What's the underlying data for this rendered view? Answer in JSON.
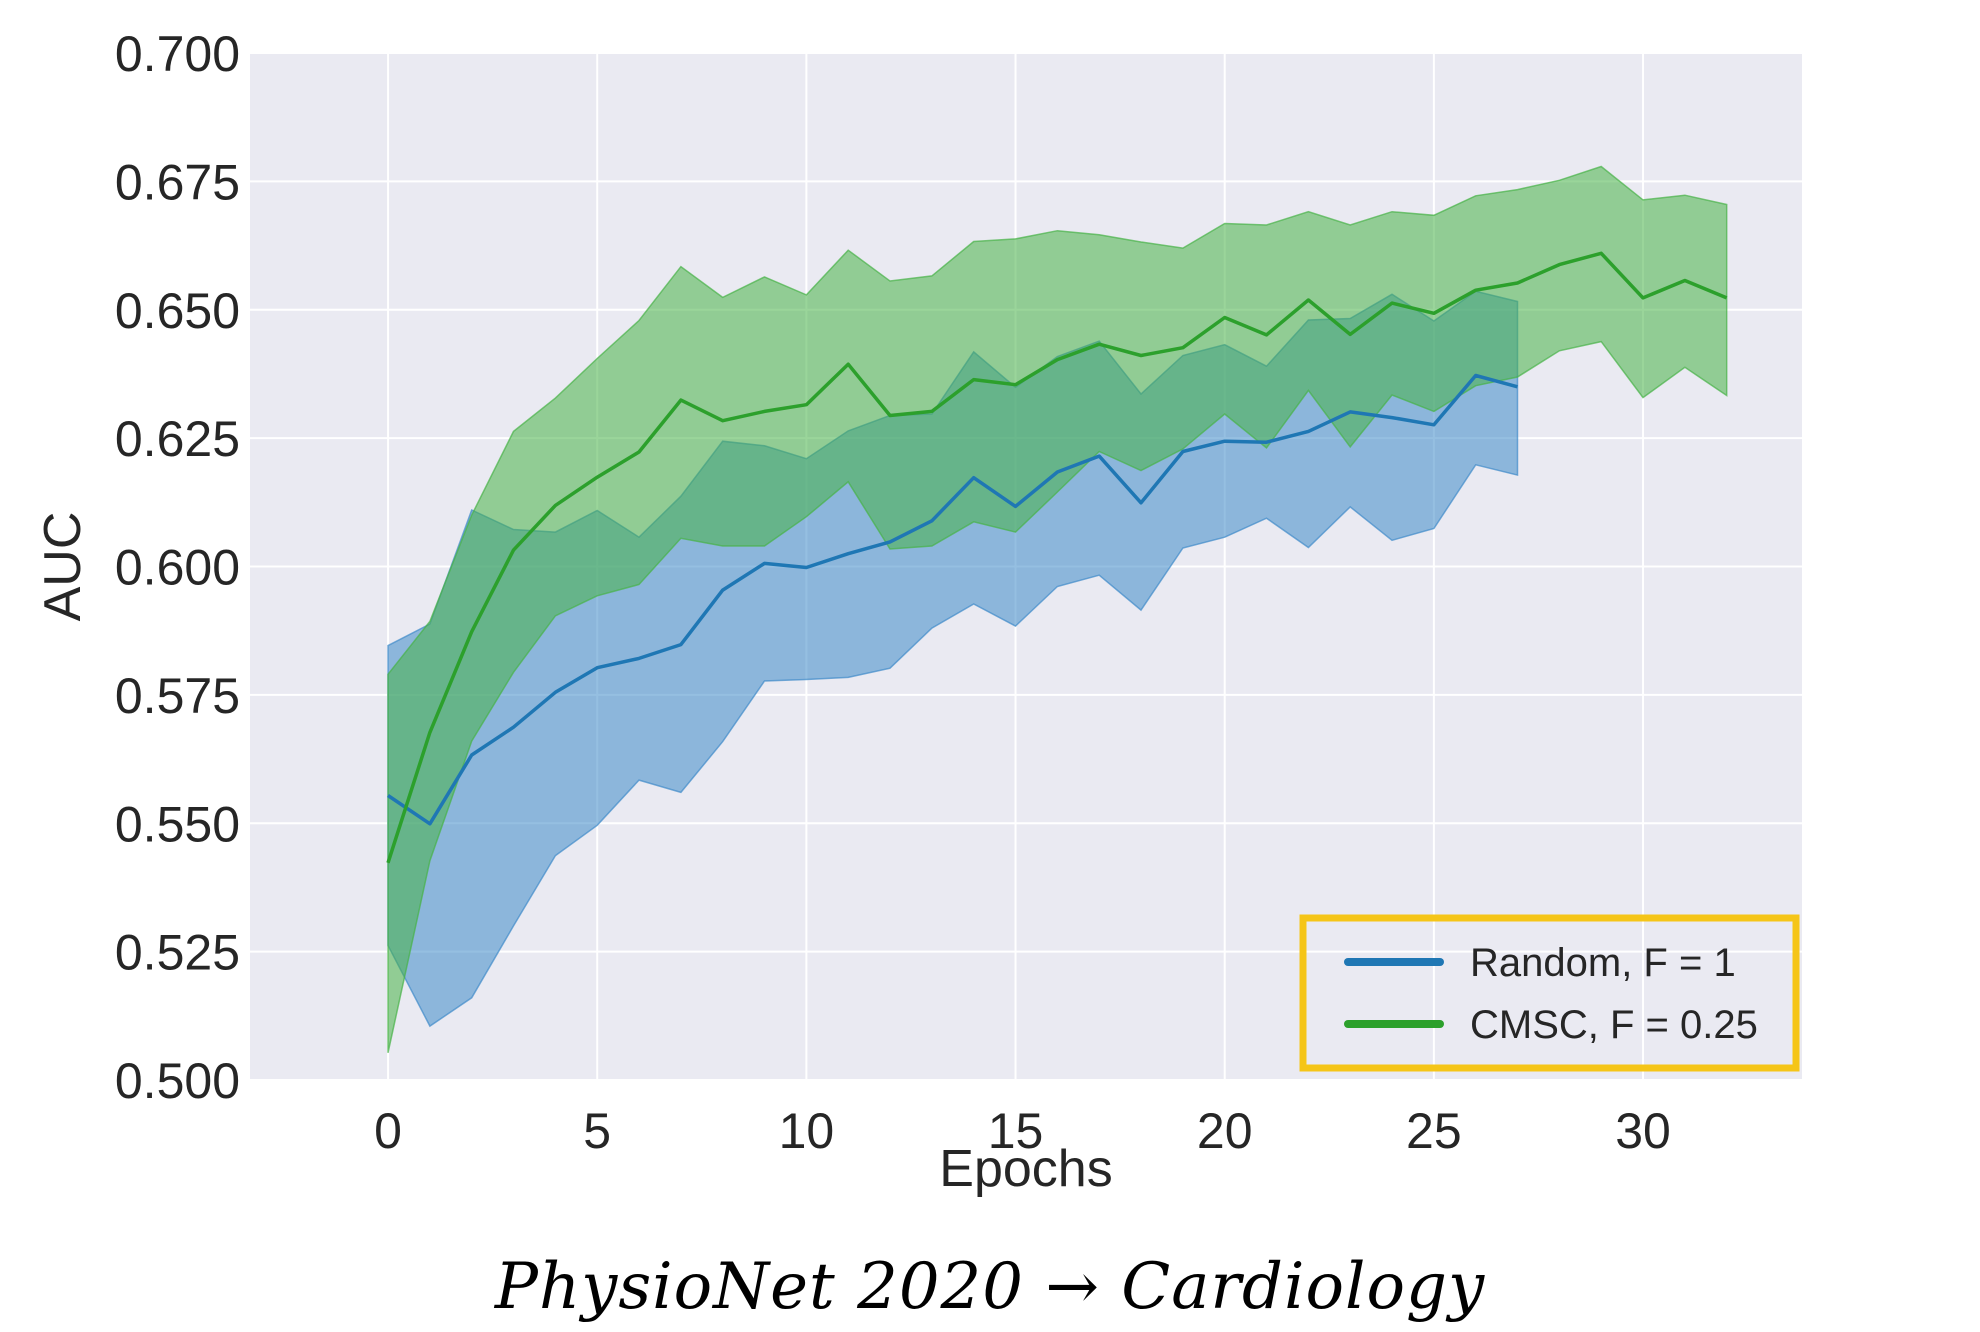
{
  "caption": "PhysioNet 2020 → Cardiology",
  "colors": {
    "background": "#eaeaf2",
    "grid": "#ffffff",
    "highlight_box": "#f5c518"
  },
  "chart_data": {
    "type": "line",
    "title": "",
    "xlabel": "Epochs",
    "ylabel": "AUC",
    "xlim": [
      -3.3,
      33.8
    ],
    "ylim": [
      0.5,
      0.7
    ],
    "xticks": [
      0,
      5,
      10,
      15,
      20,
      25,
      30
    ],
    "xtick_labels": [
      "0",
      "5",
      "10",
      "15",
      "20",
      "25",
      "30"
    ],
    "yticks": [
      0.5,
      0.525,
      0.55,
      0.575,
      0.6,
      0.625,
      0.65,
      0.675,
      0.7
    ],
    "ytick_labels": [
      "0.500",
      "0.525",
      "0.550",
      "0.575",
      "0.600",
      "0.625",
      "0.650",
      "0.675",
      "0.700"
    ],
    "grid": true,
    "legend_position": "lower-right",
    "series": [
      {
        "name": "Random, F = 1",
        "color": "#1f77b4",
        "fill_color": "#3e8ac9",
        "x": [
          0,
          1,
          2,
          3,
          4,
          5,
          6,
          7,
          8,
          9,
          10,
          11,
          12,
          13,
          14,
          15,
          16,
          17,
          18,
          19,
          20,
          21,
          22,
          23,
          24,
          25,
          26,
          27
        ],
        "mean": [
          0.5554,
          0.5499,
          0.5633,
          0.5687,
          0.5755,
          0.5803,
          0.5821,
          0.5848,
          0.5954,
          0.6006,
          0.5998,
          0.6025,
          0.6048,
          0.6089,
          0.6173,
          0.6117,
          0.6184,
          0.6215,
          0.6124,
          0.6224,
          0.6244,
          0.6242,
          0.6263,
          0.6301,
          0.629,
          0.6276,
          0.6372,
          0.635
        ],
        "upper": [
          0.5846,
          0.5888,
          0.611,
          0.6072,
          0.6067,
          0.6109,
          0.6057,
          0.6137,
          0.6244,
          0.6235,
          0.621,
          0.6264,
          0.6294,
          0.6297,
          0.6418,
          0.6349,
          0.6409,
          0.6439,
          0.6336,
          0.6411,
          0.6432,
          0.639,
          0.648,
          0.6483,
          0.653,
          0.6478,
          0.6536,
          0.6516
        ],
        "lower": [
          0.5262,
          0.5105,
          0.516,
          0.53,
          0.5437,
          0.5496,
          0.5584,
          0.556,
          0.5659,
          0.5777,
          0.578,
          0.5784,
          0.5802,
          0.588,
          0.5927,
          0.5884,
          0.5961,
          0.5983,
          0.5915,
          0.6036,
          0.6057,
          0.6094,
          0.6037,
          0.6116,
          0.6051,
          0.6074,
          0.6198,
          0.6178
        ]
      },
      {
        "name": "CMSC, F = 0.25",
        "color": "#2ca02c",
        "fill_color": "#47b247",
        "x": [
          0,
          1,
          2,
          3,
          4,
          5,
          6,
          7,
          8,
          9,
          10,
          11,
          12,
          13,
          14,
          15,
          16,
          17,
          18,
          19,
          20,
          21,
          22,
          23,
          24,
          25,
          26,
          27,
          28,
          29,
          30,
          31,
          32
        ],
        "mean": [
          0.5423,
          0.5677,
          0.5873,
          0.6032,
          0.6119,
          0.6174,
          0.6223,
          0.6324,
          0.6284,
          0.6302,
          0.6315,
          0.6394,
          0.6294,
          0.6302,
          0.6364,
          0.6354,
          0.6403,
          0.6433,
          0.6411,
          0.6426,
          0.6485,
          0.6451,
          0.6519,
          0.6452,
          0.6513,
          0.6493,
          0.6538,
          0.6552,
          0.6588,
          0.661,
          0.6523,
          0.6557,
          0.6523
        ],
        "upper": [
          0.579,
          0.5893,
          0.61,
          0.6263,
          0.6328,
          0.6405,
          0.6479,
          0.6584,
          0.6524,
          0.6564,
          0.6529,
          0.6616,
          0.6556,
          0.6566,
          0.6633,
          0.6638,
          0.6654,
          0.6646,
          0.6632,
          0.662,
          0.6668,
          0.6665,
          0.6691,
          0.6665,
          0.6691,
          0.6684,
          0.6722,
          0.6734,
          0.6752,
          0.6779,
          0.6714,
          0.6723,
          0.6705
        ],
        "lower": [
          0.5053,
          0.5427,
          0.566,
          0.5794,
          0.5904,
          0.5943,
          0.5965,
          0.6055,
          0.604,
          0.604,
          0.6097,
          0.6165,
          0.6034,
          0.604,
          0.6087,
          0.6067,
          0.6145,
          0.6224,
          0.6187,
          0.6229,
          0.6297,
          0.6231,
          0.6343,
          0.6233,
          0.6334,
          0.6302,
          0.6352,
          0.6369,
          0.642,
          0.6438,
          0.6329,
          0.6388,
          0.6333
        ]
      }
    ]
  }
}
